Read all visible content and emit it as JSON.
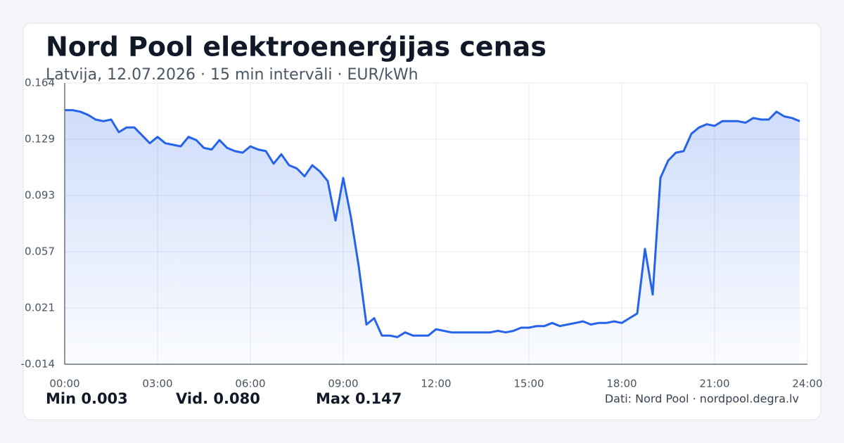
{
  "chart_data": {
    "type": "line",
    "title": "Nord Pool elektroenerģijas cenas",
    "subtitle": "Latvija, 12.07.2026 · 15 min intervāli · EUR/kWh",
    "x": [
      0,
      0.25,
      0.5,
      0.75,
      1,
      1.25,
      1.5,
      1.75,
      2,
      2.25,
      2.5,
      2.75,
      3,
      3.25,
      3.5,
      3.75,
      4,
      4.25,
      4.5,
      4.75,
      5,
      5.25,
      5.5,
      5.75,
      6,
      6.25,
      6.5,
      6.75,
      7,
      7.25,
      7.5,
      7.75,
      8,
      8.25,
      8.5,
      8.75,
      9,
      9.25,
      9.5,
      9.75,
      10,
      10.25,
      10.5,
      10.75,
      11,
      11.25,
      11.5,
      11.75,
      12,
      12.25,
      12.5,
      12.75,
      13,
      13.25,
      13.5,
      13.75,
      14,
      14.25,
      14.5,
      14.75,
      15,
      15.25,
      15.5,
      15.75,
      16,
      16.25,
      16.5,
      16.75,
      17,
      17.25,
      17.5,
      17.75,
      18,
      18.25,
      18.5,
      18.75,
      19,
      19.25,
      19.5,
      19.75,
      20,
      20.25,
      20.5,
      20.75,
      21,
      21.25,
      21.5,
      21.75,
      22,
      22.25,
      22.5,
      22.75,
      23,
      23.25,
      23.5,
      23.75
    ],
    "values": [
      0.147,
      0.147,
      0.146,
      0.144,
      0.141,
      0.14,
      0.141,
      0.133,
      0.136,
      0.136,
      0.131,
      0.126,
      0.13,
      0.126,
      0.125,
      0.124,
      0.13,
      0.128,
      0.123,
      0.122,
      0.128,
      0.123,
      0.121,
      0.12,
      0.124,
      0.122,
      0.121,
      0.113,
      0.119,
      0.112,
      0.11,
      0.105,
      0.112,
      0.108,
      0.102,
      0.077,
      0.104,
      0.079,
      0.048,
      0.011,
      0.015,
      0.004,
      0.004,
      0.003,
      0.006,
      0.004,
      0.004,
      0.004,
      0.008,
      0.007,
      0.006,
      0.006,
      0.006,
      0.006,
      0.006,
      0.006,
      0.007,
      0.006,
      0.007,
      0.009,
      0.009,
      0.01,
      0.01,
      0.012,
      0.01,
      0.011,
      0.012,
      0.013,
      0.011,
      0.012,
      0.012,
      0.013,
      0.012,
      0.015,
      0.018,
      0.059,
      0.03,
      0.104,
      0.115,
      0.12,
      0.121,
      0.132,
      0.136,
      0.138,
      0.137,
      0.14,
      0.14,
      0.14,
      0.139,
      0.142,
      0.141,
      0.141,
      0.146,
      0.143,
      0.142,
      0.14
    ],
    "color": "#2563eb",
    "xlim": [
      0,
      24
    ],
    "xticks": [
      {
        "value": 0,
        "label": "00:00"
      },
      {
        "value": 3,
        "label": "03:00"
      },
      {
        "value": 6,
        "label": "06:00"
      },
      {
        "value": 9,
        "label": "09:00"
      },
      {
        "value": 12,
        "label": "12:00"
      },
      {
        "value": 15,
        "label": "15:00"
      },
      {
        "value": 18,
        "label": "18:00"
      },
      {
        "value": 21,
        "label": "21:00"
      },
      {
        "value": 24,
        "label": "24:00"
      }
    ],
    "ylim": [
      -0.0142,
      0.1642
    ],
    "yticks": [
      {
        "value": -0.0142,
        "label": "-0.014"
      },
      {
        "value": 0.02148,
        "label": "0.021"
      },
      {
        "value": 0.05716,
        "label": "0.057"
      },
      {
        "value": 0.09284,
        "label": "0.093"
      },
      {
        "value": 0.12852,
        "label": "0.129"
      },
      {
        "value": 0.1642,
        "label": "0.164"
      }
    ],
    "grid": true
  },
  "stats": [
    {
      "label": "Min",
      "value": "0.003"
    },
    {
      "label": "Vid.",
      "value": "0.080"
    },
    {
      "label": "Max",
      "value": "0.147"
    }
  ],
  "source": "Dati: Nord Pool · nordpool.degra.lv"
}
